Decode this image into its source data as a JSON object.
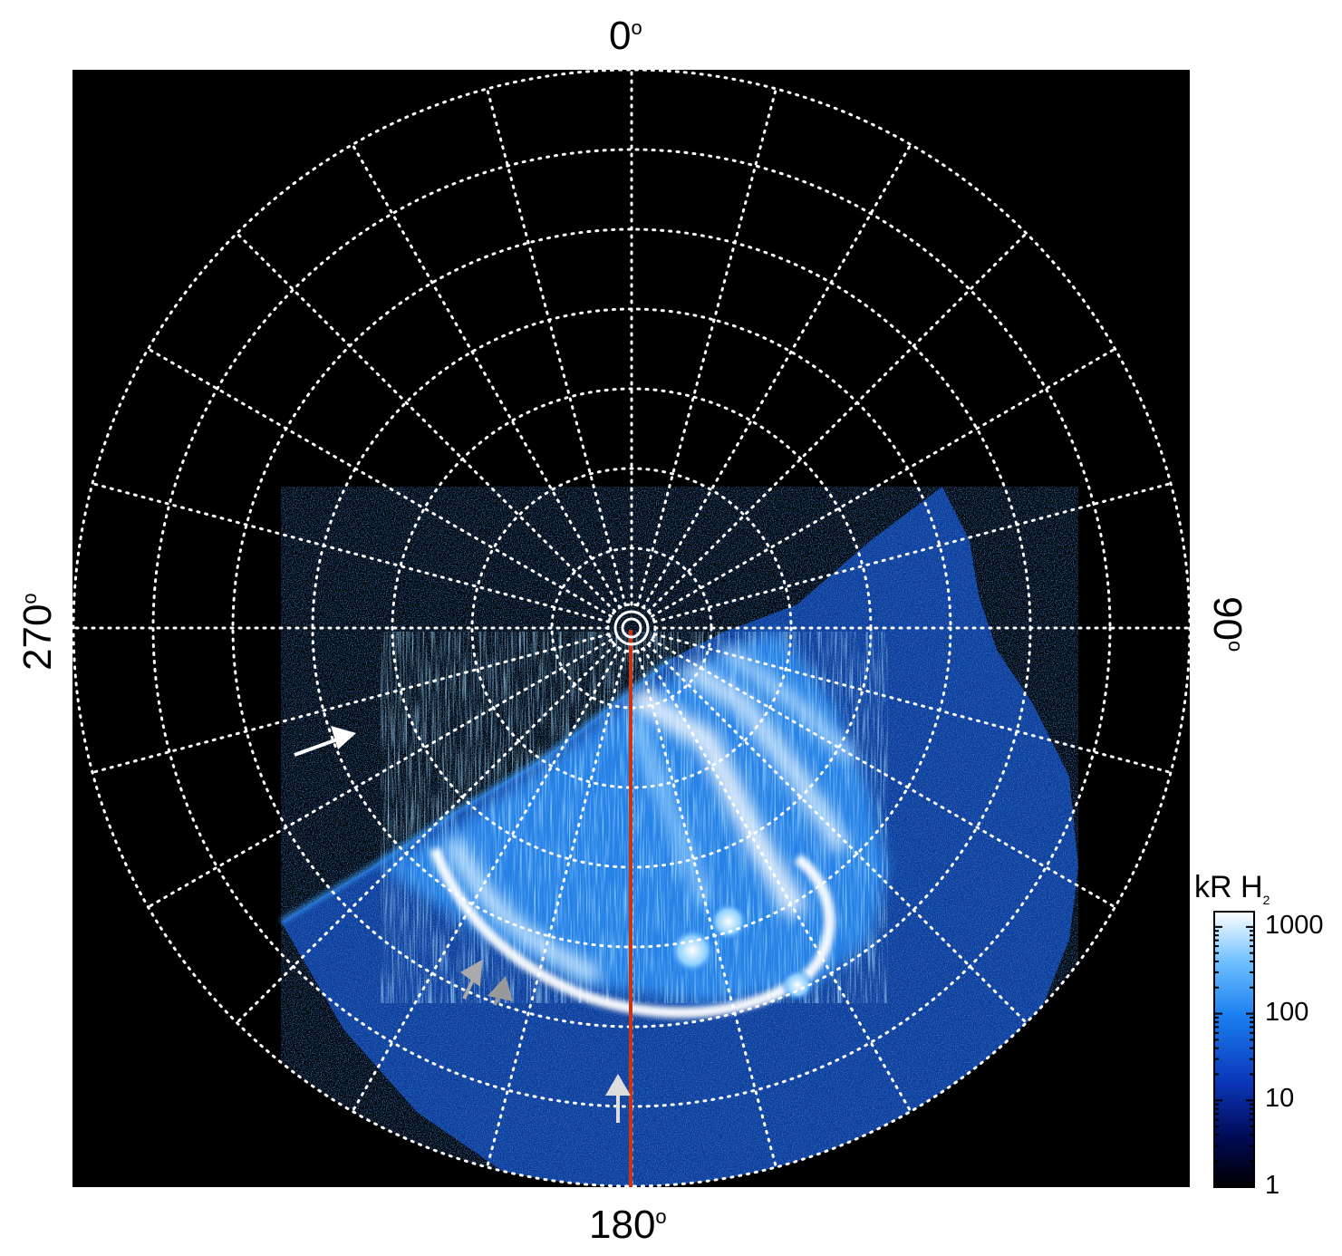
{
  "azimuth_labels": {
    "top": "0",
    "right": "90",
    "bottom": "180",
    "left": "270",
    "degree_symbol": "o"
  },
  "colorbar": {
    "title_main": "kR H",
    "title_sub": "2",
    "ticks": [
      "1000",
      "100",
      "10",
      "1"
    ],
    "tick_values": [
      1000,
      100,
      10,
      1
    ],
    "scale": "log",
    "range": [
      1,
      1500
    ],
    "colors": [
      "#000000",
      "#000a55",
      "#0a36b8",
      "#1a7ef0",
      "#6fc0ff",
      "#ffffff"
    ]
  },
  "grid": {
    "color": "#ffffff",
    "style": "dotted",
    "meridian_spacing_deg": 15,
    "latitude_circles": 7
  },
  "meridian_line": {
    "color": "#cc3311",
    "azimuth_deg": 180
  },
  "arrows": [
    {
      "color": "#ffffff",
      "name": "white-arrow"
    },
    {
      "color": "#aaaaaa",
      "name": "grey-arrow-1"
    },
    {
      "color": "#aaaaaa",
      "name": "grey-arrow-2"
    },
    {
      "color": "#cccccc",
      "name": "light-arrow"
    }
  ],
  "background": "#000000"
}
